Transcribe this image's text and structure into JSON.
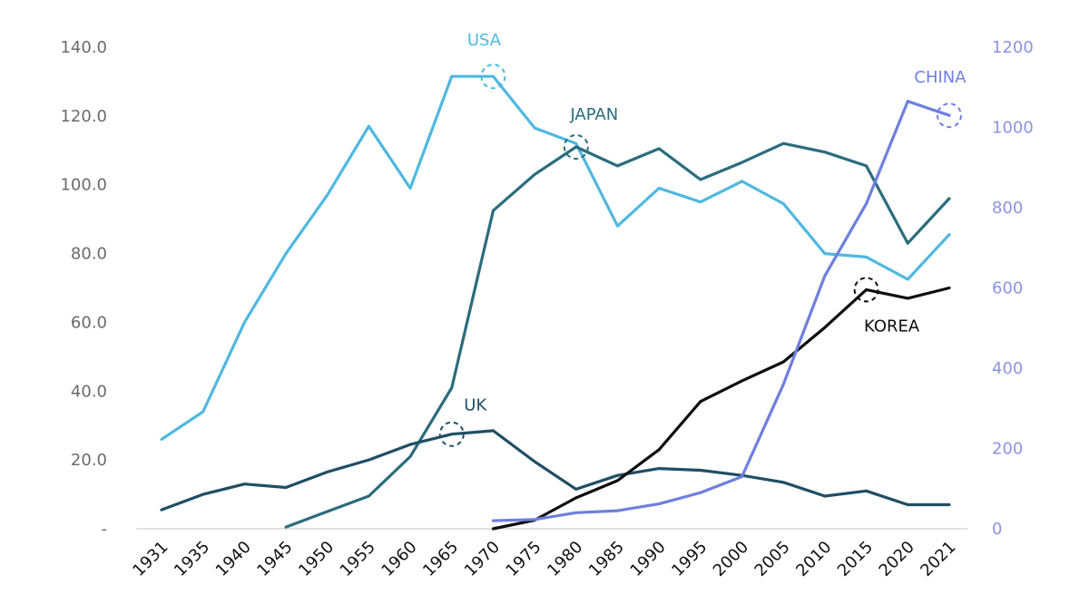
{
  "chart_data": {
    "type": "line",
    "categories": [
      "1931",
      "1935",
      "1940",
      "1945",
      "1950",
      "1955",
      "1960",
      "1965",
      "1970",
      "1975",
      "1980",
      "1985",
      "1990",
      "1995",
      "2000",
      "2005",
      "2010",
      "2015",
      "2020",
      "2021"
    ],
    "left_axis": {
      "ylim": [
        0,
        140
      ],
      "ticks": [
        0,
        20,
        40,
        60,
        80,
        100,
        120,
        140
      ],
      "tick_labels": [
        "-",
        "20.0",
        "40.0",
        "60.0",
        "80.0",
        "100.0",
        "120.0",
        "140.0"
      ]
    },
    "right_axis": {
      "ylim": [
        0,
        1200
      ],
      "ticks": [
        0,
        200,
        400,
        600,
        800,
        1000,
        1200
      ],
      "tick_labels": [
        "0",
        "200",
        "400",
        "600",
        "800",
        "1000",
        "1200"
      ]
    },
    "series": [
      {
        "name": "USA",
        "axis": "left",
        "color": "#4fb8e0",
        "values": [
          26.0,
          34.0,
          60.0,
          80.0,
          97.0,
          117.0,
          99.0,
          131.5,
          131.5,
          116.5,
          112.0,
          88.0,
          99.0,
          95.0,
          101.0,
          94.5,
          80.0,
          79.0,
          72.5,
          85.5
        ],
        "label": "USA",
        "marker_at": "1970"
      },
      {
        "name": "JAPAN",
        "axis": "left",
        "color": "#2b6c7d",
        "values": [
          null,
          null,
          null,
          0.5,
          5.0,
          9.5,
          21.0,
          41.0,
          92.5,
          103.0,
          111.0,
          105.5,
          110.5,
          101.5,
          106.5,
          112.0,
          109.5,
          105.5,
          83.0,
          96.0
        ],
        "label": "JAPAN",
        "marker_at": "1980"
      },
      {
        "name": "UK",
        "axis": "left",
        "color": "#1f4e66",
        "values": [
          5.5,
          10.0,
          13.0,
          12.0,
          16.5,
          20.0,
          24.5,
          27.5,
          28.5,
          19.5,
          11.5,
          15.5,
          17.5,
          17.0,
          15.5,
          13.5,
          9.5,
          11.0,
          7.0,
          7.0
        ],
        "label": "UK",
        "marker_at": "1965"
      },
      {
        "name": "KOREA",
        "axis": "left",
        "color": "#0e0e0e",
        "values": [
          null,
          null,
          null,
          null,
          null,
          null,
          null,
          null,
          0.0,
          2.5,
          9.0,
          14.0,
          23.0,
          37.0,
          43.0,
          48.5,
          58.5,
          69.5,
          67.0,
          70.0
        ],
        "label": "KOREA",
        "marker_at": "2015"
      },
      {
        "name": "CHINA",
        "axis": "right",
        "color": "#6e7fe0",
        "values": [
          null,
          null,
          null,
          null,
          null,
          null,
          null,
          null,
          20,
          23,
          40,
          45,
          62,
          90,
          130,
          360,
          630,
          810,
          1065,
          1030
        ],
        "label": "CHINA",
        "marker_at": "2021"
      }
    ]
  }
}
